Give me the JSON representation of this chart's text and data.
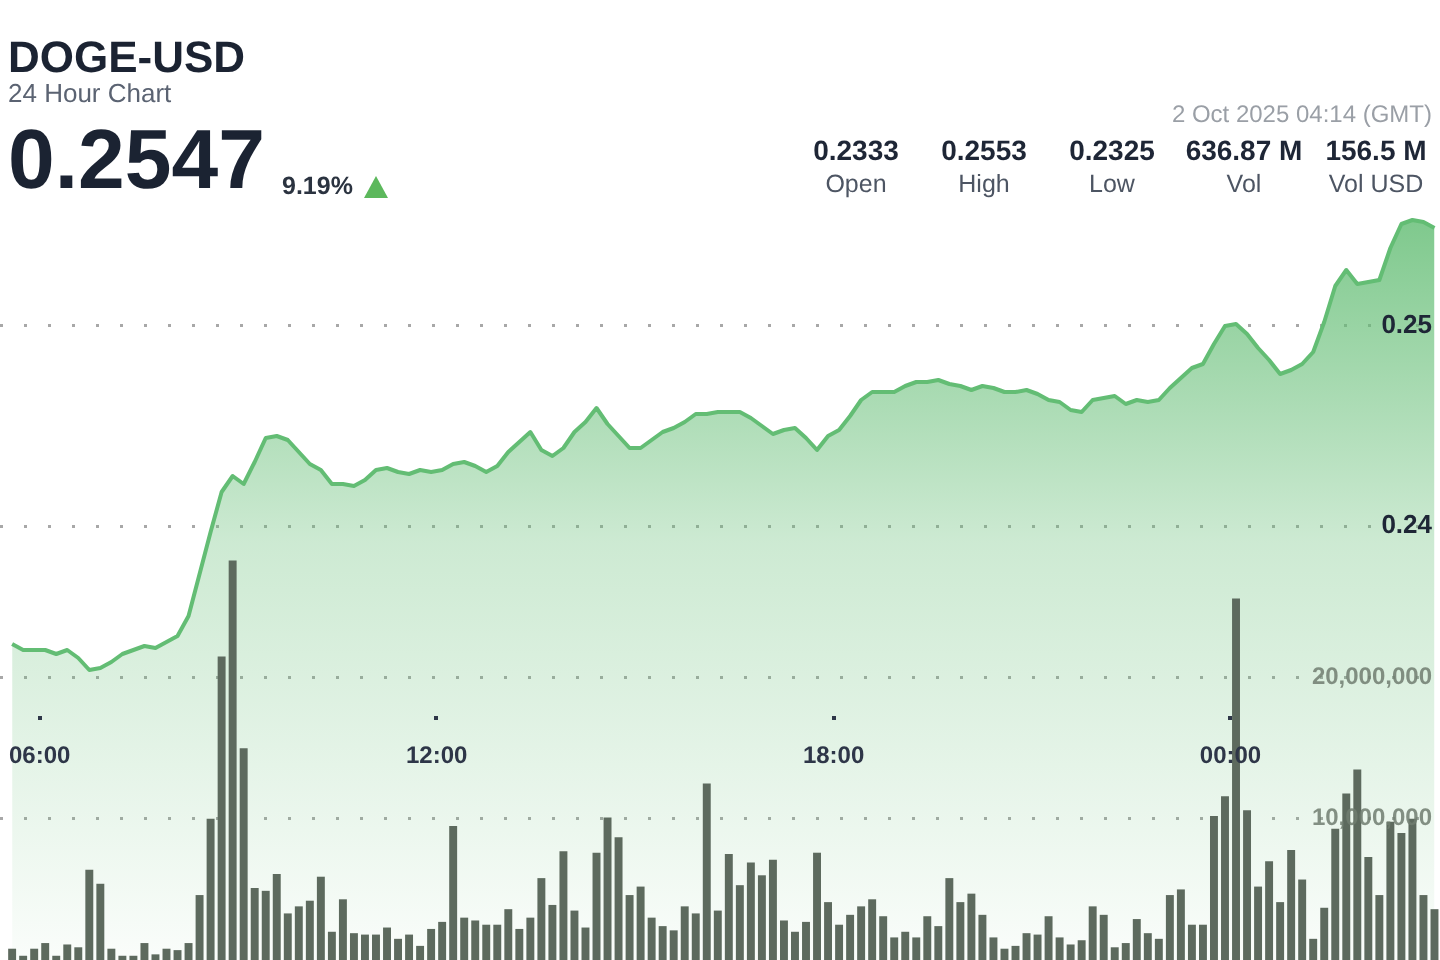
{
  "chart_data": {
    "type": "area",
    "title": "DOGE-USD",
    "subtitle": "24 Hour Chart",
    "annotations": [
      "0.2547",
      "9.19%",
      "2 Oct 2025 04:14 (GMT)",
      "0.2333",
      "Open",
      "0.2553",
      "High",
      "0.2325",
      "Low",
      "636.87 M",
      "Vol",
      "156.5 M",
      "Vol USD"
    ],
    "x": [
      "2025-10-01T05:35",
      "2025-10-01T05:45",
      "2025-10-01T05:55",
      "2025-10-01T06:05",
      "2025-10-01T06:15",
      "2025-10-01T06:25",
      "2025-10-01T06:35",
      "2025-10-01T06:45",
      "2025-10-01T06:55",
      "2025-10-01T07:05",
      "2025-10-01T07:15",
      "2025-10-01T07:25",
      "2025-10-01T07:35",
      "2025-10-01T07:45",
      "2025-10-01T07:55",
      "2025-10-01T08:05",
      "2025-10-01T08:15",
      "2025-10-01T08:25",
      "2025-10-01T08:35",
      "2025-10-01T08:45",
      "2025-10-01T08:55",
      "2025-10-01T09:05",
      "2025-10-01T09:15",
      "2025-10-01T09:25",
      "2025-10-01T09:35",
      "2025-10-01T09:45",
      "2025-10-01T09:55",
      "2025-10-01T10:05",
      "2025-10-01T10:15",
      "2025-10-01T10:25",
      "2025-10-01T10:35",
      "2025-10-01T10:45",
      "2025-10-01T10:55",
      "2025-10-01T11:05",
      "2025-10-01T11:15",
      "2025-10-01T11:25",
      "2025-10-01T11:35",
      "2025-10-01T11:45",
      "2025-10-01T11:55",
      "2025-10-01T12:05",
      "2025-10-01T12:15",
      "2025-10-01T12:25",
      "2025-10-01T12:35",
      "2025-10-01T12:45",
      "2025-10-01T12:55",
      "2025-10-01T13:05",
      "2025-10-01T13:15",
      "2025-10-01T13:25",
      "2025-10-01T13:35",
      "2025-10-01T13:45",
      "2025-10-01T13:55",
      "2025-10-01T14:05",
      "2025-10-01T14:15",
      "2025-10-01T14:25",
      "2025-10-01T14:35",
      "2025-10-01T14:45",
      "2025-10-01T14:55",
      "2025-10-01T15:05",
      "2025-10-01T15:15",
      "2025-10-01T15:25",
      "2025-10-01T15:35",
      "2025-10-01T15:45",
      "2025-10-01T15:55",
      "2025-10-01T16:05",
      "2025-10-01T16:15",
      "2025-10-01T16:25",
      "2025-10-01T16:35",
      "2025-10-01T16:45",
      "2025-10-01T16:55",
      "2025-10-01T17:05",
      "2025-10-01T17:15",
      "2025-10-01T17:25",
      "2025-10-01T17:35",
      "2025-10-01T17:45",
      "2025-10-01T17:55",
      "2025-10-01T18:05",
      "2025-10-01T18:15",
      "2025-10-01T18:25",
      "2025-10-01T18:35",
      "2025-10-01T18:45",
      "2025-10-01T18:55",
      "2025-10-01T19:05",
      "2025-10-01T19:15",
      "2025-10-01T19:25",
      "2025-10-01T19:35",
      "2025-10-01T19:45",
      "2025-10-01T19:55",
      "2025-10-01T20:05",
      "2025-10-01T20:15",
      "2025-10-01T20:25",
      "2025-10-01T20:35",
      "2025-10-01T20:45",
      "2025-10-01T20:55",
      "2025-10-01T21:05",
      "2025-10-01T21:15",
      "2025-10-01T21:25",
      "2025-10-01T21:35",
      "2025-10-01T21:45",
      "2025-10-01T21:55",
      "2025-10-01T22:05",
      "2025-10-01T22:15",
      "2025-10-01T22:25",
      "2025-10-01T22:35",
      "2025-10-01T22:45",
      "2025-10-01T22:55",
      "2025-10-01T23:05",
      "2025-10-01T23:15",
      "2025-10-01T23:25",
      "2025-10-01T23:35",
      "2025-10-01T23:45",
      "2025-10-01T23:55",
      "2025-10-02T00:05",
      "2025-10-02T00:15",
      "2025-10-02T00:25",
      "2025-10-02T00:35",
      "2025-10-02T00:45",
      "2025-10-02T00:55",
      "2025-10-02T01:05",
      "2025-10-02T01:15",
      "2025-10-02T01:25",
      "2025-10-02T01:35",
      "2025-10-02T01:45",
      "2025-10-02T01:55",
      "2025-10-02T02:05",
      "2025-10-02T02:15",
      "2025-10-02T02:25",
      "2025-10-02T02:35",
      "2025-10-02T02:45",
      "2025-10-02T02:55",
      "2025-10-02T03:05"
    ],
    "series": [
      {
        "color": "#63bd74",
        "values": [
          0.2341,
          0.2338,
          0.2338,
          0.2338,
          0.2336,
          0.2338,
          0.2334,
          0.2328,
          0.2329,
          0.2332,
          0.2336,
          0.2338,
          0.234,
          0.2339,
          0.2342,
          0.2345,
          0.2355,
          0.2376,
          0.2397,
          0.2417,
          0.2425,
          0.2421,
          0.2432,
          0.2444,
          0.2445,
          0.2443,
          0.2437,
          0.2431,
          0.2428,
          0.2421,
          0.2421,
          0.242,
          0.2423,
          0.2428,
          0.2429,
          0.2427,
          0.2426,
          0.2428,
          0.2427,
          0.2428,
          0.2431,
          0.2432,
          0.243,
          0.2427,
          0.243,
          0.2437,
          0.2442,
          0.2447,
          0.2438,
          0.2435,
          0.2439,
          0.2447,
          0.2452,
          0.2459,
          0.2451,
          0.2445,
          0.2439,
          0.2439,
          0.2443,
          0.2447,
          0.2449,
          0.2452,
          0.2456,
          0.2456,
          0.2457,
          0.2457,
          0.2457,
          0.2454,
          0.245,
          0.2446,
          0.2448,
          0.2449,
          0.2444,
          0.2438,
          0.2445,
          0.2448,
          0.2455,
          0.2463,
          0.2467,
          0.2467,
          0.2467,
          0.247,
          0.2472,
          0.2472,
          0.2473,
          0.2471,
          0.247,
          0.2468,
          0.247,
          0.2469,
          0.2467,
          0.2467,
          0.2468,
          0.2466,
          0.2463,
          0.2462,
          0.2458,
          0.2457,
          0.2463,
          0.2464,
          0.2465,
          0.2461,
          0.2463,
          0.2462,
          0.2463,
          0.2469,
          0.2474,
          0.2479,
          0.2481,
          0.2491,
          0.25,
          0.2501,
          0.2496,
          0.2489,
          0.2483,
          0.2476,
          0.2478,
          0.2481,
          0.2487,
          0.2502,
          0.252,
          0.2528,
          0.2521,
          0.2522,
          0.2523,
          0.2539,
          0.2551,
          0.2553,
          0.2552,
          0.2549
        ]
      },
      {
        "type": "bar",
        "axis": "y2",
        "color": "#5d6a5e",
        "values": [
          800000,
          300000,
          800000,
          1200000,
          300000,
          1100000,
          900000,
          6400000,
          5400000,
          800000,
          300000,
          300000,
          1200000,
          400000,
          800000,
          700000,
          1200000,
          4600000,
          10000000,
          21500000,
          28300000,
          15000000,
          5100000,
          4900000,
          6100000,
          3300000,
          3800000,
          4200000,
          5900000,
          2000000,
          4300000,
          1900000,
          1800000,
          1800000,
          2300000,
          1500000,
          1800000,
          1000000,
          2200000,
          2700000,
          9500000,
          3000000,
          2800000,
          2500000,
          2500000,
          3600000,
          2200000,
          3000000,
          5800000,
          3900000,
          7700000,
          3500000,
          2300000,
          7600000,
          10100000,
          8700000,
          4600000,
          5200000,
          3000000,
          2400000,
          2100000,
          3800000,
          3300000,
          12500000,
          3500000,
          7500000,
          5300000,
          6900000,
          6000000,
          7100000,
          2800000,
          2000000,
          2700000,
          7600000,
          4100000,
          2500000,
          3200000,
          3800000,
          4300000,
          3100000,
          1600000,
          2000000,
          1600000,
          3100000,
          2400000,
          5800000,
          4100000,
          4700000,
          3200000,
          1600000,
          800000,
          1000000,
          1900000,
          1800000,
          3100000,
          1600000,
          1100000,
          1400000,
          3800000,
          3200000,
          900000,
          1200000,
          2900000,
          1900000,
          1500000,
          4600000,
          5000000,
          2500000,
          2500000,
          10200000,
          11600000,
          25600000,
          10600000,
          5200000,
          7000000,
          4100000,
          7800000,
          5700000,
          1500000,
          3700000,
          9300000,
          11800000,
          13500000,
          7300000,
          4600000,
          9800000,
          9000000,
          10000000,
          4600000,
          3600000
        ]
      }
    ],
    "xlim": [
      "2025-10-01T05:24",
      "2025-10-02T03:10"
    ],
    "xticks": [
      {
        "value": "2025-10-01T06:00",
        "label": "06:00"
      },
      {
        "value": "2025-10-01T12:00",
        "label": "12:00"
      },
      {
        "value": "2025-10-01T18:00",
        "label": "18:00"
      },
      {
        "value": "2025-10-02T00:00",
        "label": "00:00"
      }
    ],
    "ylim": [
      0.2183,
      0.2663
    ],
    "yticks": [
      0.24,
      0.25
    ],
    "y2lim": [
      0,
      68000000
    ],
    "y2ticks": [
      {
        "value": 10000000,
        "label": "10,000,000"
      },
      {
        "value": 20000000,
        "label": "20,000,000"
      }
    ],
    "grid": "y"
  }
}
